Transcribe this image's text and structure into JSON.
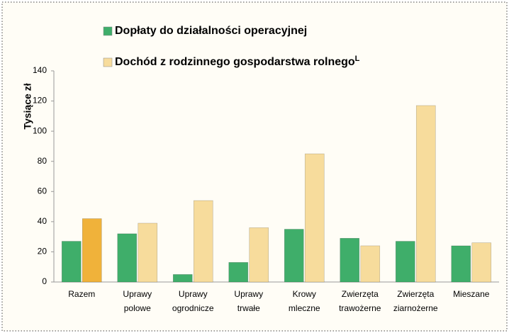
{
  "chart_data": {
    "type": "bar",
    "y_label": "Tysiące zł",
    "categories": [
      "Razem",
      "Uprawy polowe",
      "Uprawy ogrodnicze",
      "Uprawy trwałe",
      "Krowy mleczne",
      "Zwierzęta trawożerne",
      "Zwierzęta ziarnożerne",
      "Mieszane"
    ],
    "series": [
      {
        "name": "Dopłaty do działalności operacyjnej",
        "color": "#3fae6a",
        "values": [
          27,
          32,
          5,
          13,
          35,
          29,
          27,
          24
        ]
      },
      {
        "name": "Dochód z rodzinnego gospodarstwa rolnego",
        "footnote_mark": "L",
        "color": "#f7dc9c",
        "colors": [
          "#f0b23a",
          "#f7dc9c",
          "#f7dc9c",
          "#f7dc9c",
          "#f7dc9c",
          "#f7dc9c",
          "#f7dc9c",
          "#f7dc9c"
        ],
        "values": [
          42,
          39,
          54,
          36,
          85,
          24,
          117,
          26
        ]
      }
    ],
    "ylim": [
      0,
      140
    ],
    "yticks": [
      0,
      20,
      40,
      60,
      80,
      100,
      120,
      140
    ],
    "grid": false
  }
}
